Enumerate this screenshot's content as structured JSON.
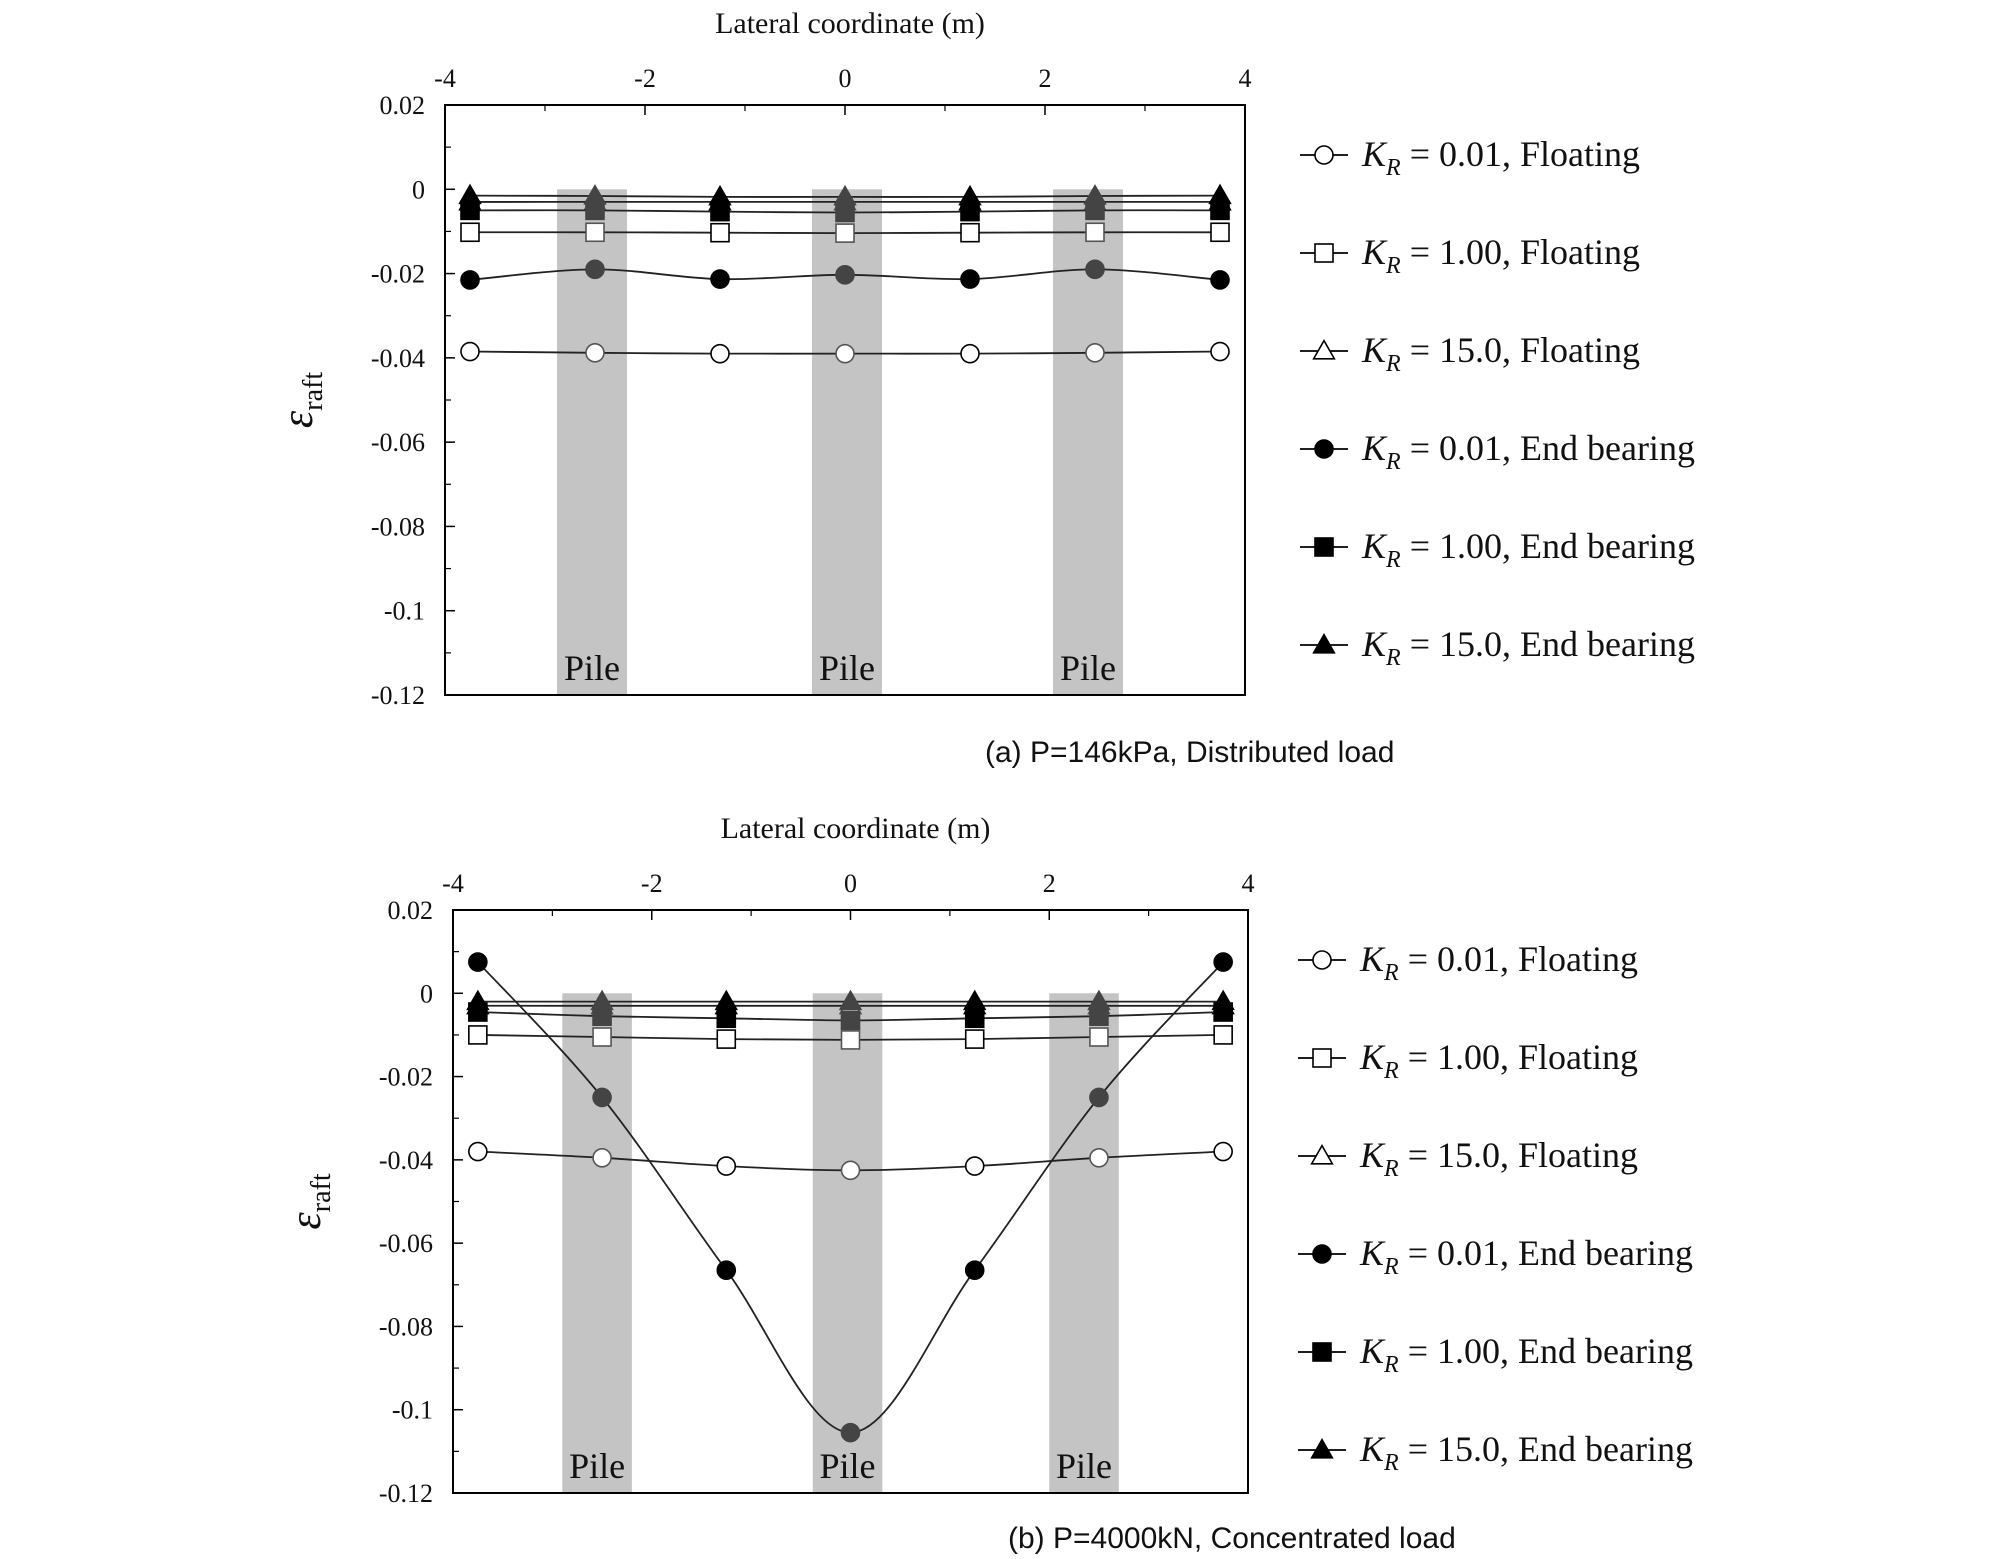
{
  "chart_data": [
    {
      "type": "line",
      "caption": "(a) P=146kPa, Distributed load",
      "xlabel": "Lateral coordinate (m)",
      "ylabel": "ε",
      "ylabel_sub": "raft",
      "xlim": [
        -4,
        4
      ],
      "ylim": [
        -0.12,
        0.02
      ],
      "xticks": [
        -4,
        -2,
        0,
        2,
        4
      ],
      "yticks": [
        0.02,
        0,
        -0.02,
        -0.04,
        -0.06,
        -0.08,
        -0.1,
        -0.12
      ],
      "xtick_labels": [
        "-4",
        "-2",
        "0",
        "2",
        "4"
      ],
      "ytick_labels": [
        "0.02",
        "0",
        "-0.02",
        "-0.04",
        "-0.06",
        "-0.08",
        "-0.1",
        "-0.12"
      ],
      "pile_label": "Pile",
      "piles": [
        [
          -2.88,
          -2.18
        ],
        [
          -0.33,
          0.37
        ],
        [
          2.08,
          2.78
        ]
      ],
      "legend_placement": "right",
      "x": [
        -3.75,
        -2.5,
        -1.25,
        0,
        1.25,
        2.5,
        3.75
      ],
      "series": [
        {
          "kr": "0.01",
          "cond": "Floating",
          "marker": "circle-open",
          "values": [
            -0.0385,
            -0.0388,
            -0.039,
            -0.039,
            -0.039,
            -0.0388,
            -0.0385
          ]
        },
        {
          "kr": "1.00",
          "cond": "Floating",
          "marker": "square-open",
          "values": [
            -0.0102,
            -0.0102,
            -0.0103,
            -0.0104,
            -0.0103,
            -0.0102,
            -0.0102
          ]
        },
        {
          "kr": "15.0",
          "cond": "Floating",
          "marker": "triangle-open",
          "values": [
            -0.003,
            -0.003,
            -0.003,
            -0.003,
            -0.003,
            -0.003,
            -0.003
          ]
        },
        {
          "kr": "0.01",
          "cond": "End bearing",
          "marker": "circle-filled",
          "values": [
            -0.0215,
            -0.019,
            -0.0213,
            -0.0203,
            -0.0213,
            -0.019,
            -0.0215
          ]
        },
        {
          "kr": "1.00",
          "cond": "End bearing",
          "marker": "square-filled",
          "values": [
            -0.005,
            -0.005,
            -0.0053,
            -0.0055,
            -0.0053,
            -0.005,
            -0.005
          ]
        },
        {
          "kr": "15.0",
          "cond": "End bearing",
          "marker": "triangle-filled",
          "values": [
            -0.0015,
            -0.0016,
            -0.0018,
            -0.0018,
            -0.0018,
            -0.0016,
            -0.0015
          ]
        }
      ]
    },
    {
      "type": "line",
      "caption": "(b) P=4000kN, Concentrated load",
      "xlabel": "Lateral coordinate (m)",
      "ylabel": "ε",
      "ylabel_sub": "raft",
      "xlim": [
        -4,
        4
      ],
      "ylim": [
        -0.12,
        0.02
      ],
      "xticks": [
        -4,
        -2,
        0,
        2,
        4
      ],
      "yticks": [
        0.02,
        0,
        -0.02,
        -0.04,
        -0.06,
        -0.08,
        -0.1,
        -0.12
      ],
      "xtick_labels": [
        "-4",
        "-2",
        "0",
        "2",
        "4"
      ],
      "ytick_labels": [
        "0.02",
        "0",
        "-0.02",
        "-0.04",
        "-0.06",
        "-0.08",
        "-0.1",
        "-0.12"
      ],
      "pile_label": "Pile",
      "piles": [
        [
          -2.9,
          -2.2
        ],
        [
          -0.38,
          0.32
        ],
        [
          2.0,
          2.7
        ]
      ],
      "legend_placement": "right",
      "x": [
        -3.75,
        -2.5,
        -1.25,
        0,
        1.25,
        2.5,
        3.75
      ],
      "series": [
        {
          "kr": "0.01",
          "cond": "Floating",
          "marker": "circle-open",
          "values": [
            -0.038,
            -0.0395,
            -0.0415,
            -0.0425,
            -0.0415,
            -0.0395,
            -0.038
          ]
        },
        {
          "kr": "1.00",
          "cond": "Floating",
          "marker": "square-open",
          "values": [
            -0.01,
            -0.0105,
            -0.011,
            -0.0112,
            -0.011,
            -0.0105,
            -0.01
          ]
        },
        {
          "kr": "15.0",
          "cond": "Floating",
          "marker": "triangle-open",
          "values": [
            -0.003,
            -0.003,
            -0.003,
            -0.003,
            -0.003,
            -0.003,
            -0.003
          ]
        },
        {
          "kr": "0.01",
          "cond": "End bearing",
          "marker": "circle-filled",
          "values": [
            0.0075,
            -0.025,
            -0.0665,
            -0.1055,
            -0.0665,
            -0.025,
            0.0075
          ]
        },
        {
          "kr": "1.00",
          "cond": "End bearing",
          "marker": "square-filled",
          "values": [
            -0.0045,
            -0.0055,
            -0.006,
            -0.0065,
            -0.006,
            -0.0055,
            -0.0045
          ]
        },
        {
          "kr": "15.0",
          "cond": "End bearing",
          "marker": "triangle-filled",
          "values": [
            -0.002,
            -0.002,
            -0.002,
            -0.002,
            -0.002,
            -0.002,
            -0.002
          ]
        }
      ]
    }
  ]
}
